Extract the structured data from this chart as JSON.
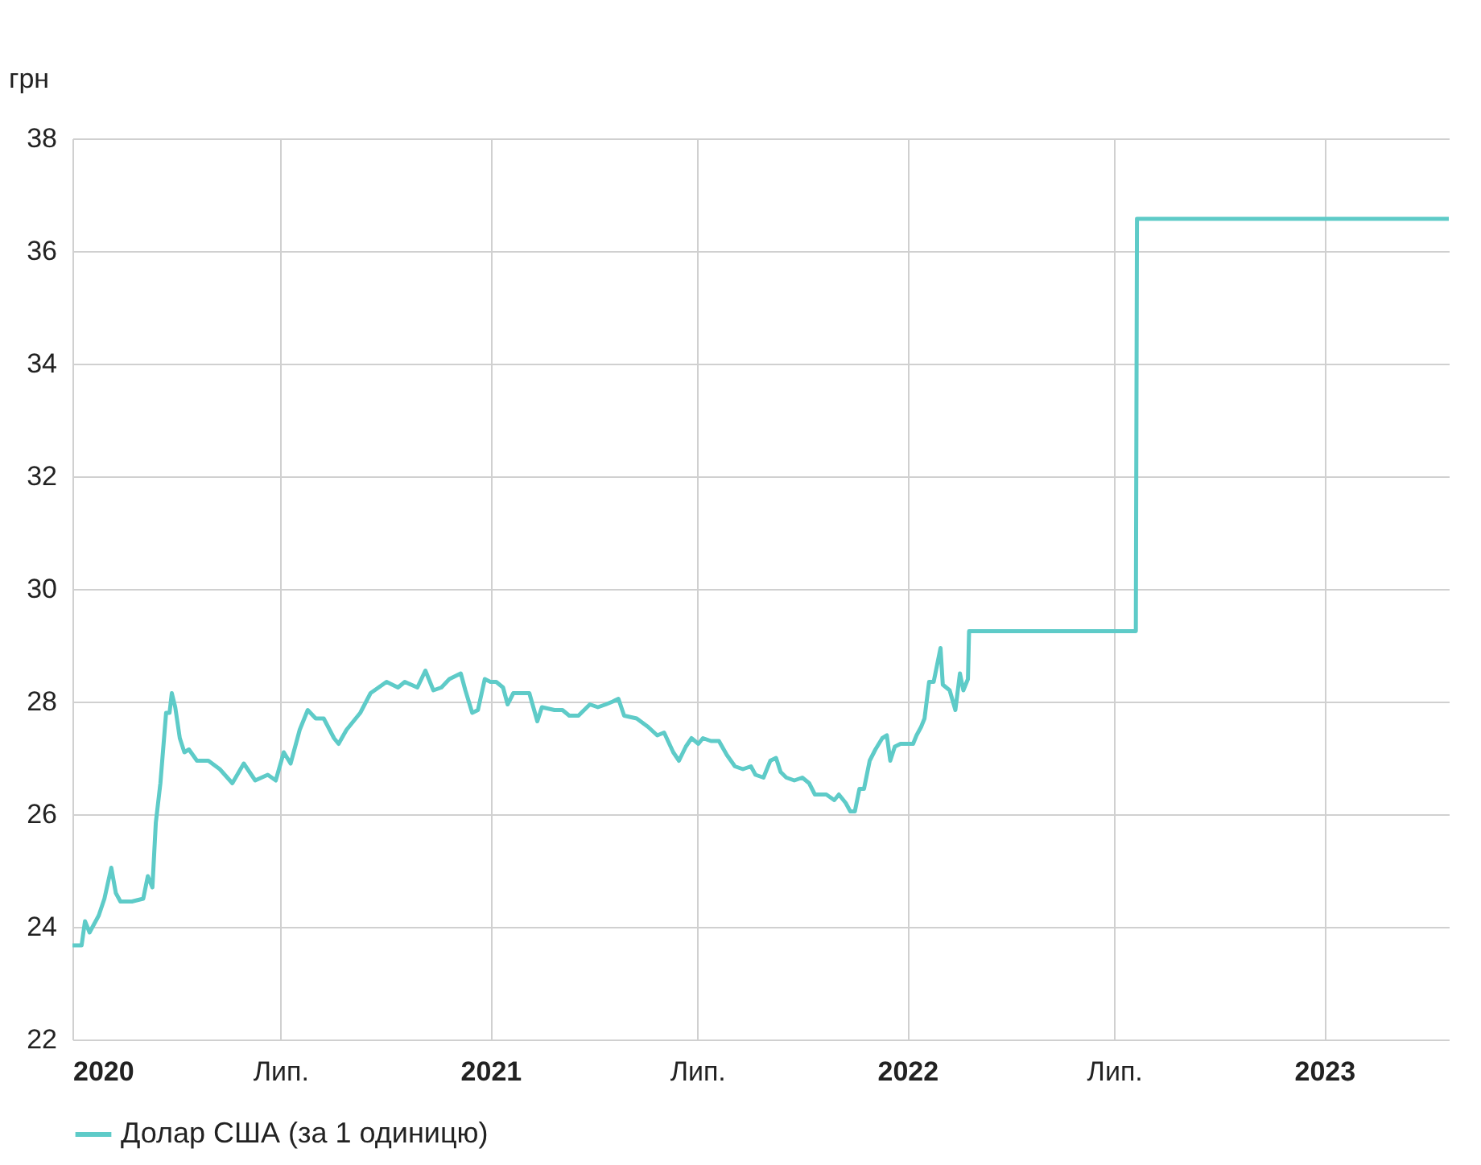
{
  "chart_data": {
    "type": "line",
    "ylabel": "грн",
    "xlim": [
      "2020-01-01",
      "2023-04-20"
    ],
    "xticks": [
      {
        "value": "2020-01-01",
        "label": "2020"
      },
      {
        "value": "2020-07-01",
        "label": "Лип."
      },
      {
        "value": "2021-01-01",
        "label": "2021"
      },
      {
        "value": "2021-07-01",
        "label": "Лип."
      },
      {
        "value": "2022-01-01",
        "label": "2022"
      },
      {
        "value": "2022-07-01",
        "label": "Лип."
      },
      {
        "value": "2023-01-01",
        "label": "2023"
      }
    ],
    "ylim": [
      22,
      38
    ],
    "yticks": [
      22,
      24,
      26,
      28,
      30,
      32,
      34,
      36,
      38
    ],
    "grid": true,
    "legend": "bottom",
    "marker": "none",
    "line_style": "solid",
    "series": [
      {
        "name": "Долар США (за 1 одиницю)",
        "color": "#5ecbc8",
        "x": [
          "2020-01-01",
          "2020-01-09",
          "2020-01-12",
          "2020-01-16",
          "2020-01-24",
          "2020-01-29",
          "2020-02-04",
          "2020-02-08",
          "2020-02-12",
          "2020-02-22",
          "2020-03-03",
          "2020-03-07",
          "2020-03-11",
          "2020-03-14",
          "2020-03-18",
          "2020-03-23",
          "2020-03-26",
          "2020-03-28",
          "2020-03-31",
          "2020-04-04",
          "2020-04-08",
          "2020-04-12",
          "2020-04-19",
          "2020-04-29",
          "2020-05-09",
          "2020-05-20",
          "2020-05-30",
          "2020-06-09",
          "2020-06-20",
          "2020-06-27",
          "2020-07-04",
          "2020-07-10",
          "2020-07-18",
          "2020-07-25",
          "2020-08-01",
          "2020-08-08",
          "2020-08-17",
          "2020-08-21",
          "2020-08-28",
          "2020-09-09",
          "2020-09-18",
          "2020-10-02",
          "2020-10-12",
          "2020-10-18",
          "2020-10-29",
          "2020-11-05",
          "2020-11-12",
          "2020-11-19",
          "2020-11-26",
          "2020-12-06",
          "2020-12-10",
          "2020-12-16",
          "2020-12-21",
          "2020-12-27",
          "2021-01-01",
          "2021-01-06",
          "2021-01-12",
          "2021-01-16",
          "2021-01-21",
          "2021-01-30",
          "2021-02-04",
          "2021-02-11",
          "2021-02-15",
          "2021-02-26",
          "2021-03-05",
          "2021-03-11",
          "2021-03-19",
          "2021-03-29",
          "2021-04-05",
          "2021-04-12",
          "2021-04-18",
          "2021-04-23",
          "2021-04-28",
          "2021-05-09",
          "2021-05-19",
          "2021-05-27",
          "2021-06-02",
          "2021-06-10",
          "2021-06-15",
          "2021-06-21",
          "2021-06-26",
          "2021-07-02",
          "2021-07-06",
          "2021-07-13",
          "2021-07-20",
          "2021-07-27",
          "2021-08-03",
          "2021-08-10",
          "2021-08-17",
          "2021-08-21",
          "2021-08-28",
          "2021-09-03",
          "2021-09-08",
          "2021-09-12",
          "2021-09-17",
          "2021-09-24",
          "2021-10-01",
          "2021-10-07",
          "2021-10-12",
          "2021-10-22",
          "2021-10-29",
          "2021-11-02",
          "2021-11-08",
          "2021-11-12",
          "2021-11-16",
          "2021-11-20",
          "2021-11-24",
          "2021-11-29",
          "2021-12-04",
          "2021-12-10",
          "2021-12-14",
          "2021-12-17",
          "2021-12-21",
          "2021-12-26",
          "2022-01-01",
          "2022-01-06",
          "2022-01-09",
          "2022-01-13",
          "2022-01-16",
          "2022-01-20",
          "2022-01-24",
          "2022-01-30",
          "2022-02-01",
          "2022-02-07",
          "2022-02-12",
          "2022-02-16",
          "2022-02-19",
          "2022-02-23",
          "2022-02-24",
          "2022-07-20",
          "2022-07-21",
          "2023-04-20"
        ],
        "values": [
          23.67,
          23.67,
          24.1,
          23.9,
          24.2,
          24.5,
          25.05,
          24.6,
          24.45,
          24.45,
          24.5,
          24.9,
          24.7,
          25.85,
          26.55,
          27.8,
          27.8,
          28.15,
          27.9,
          27.35,
          27.1,
          27.15,
          26.95,
          26.95,
          26.8,
          26.55,
          26.9,
          26.6,
          26.7,
          26.6,
          27.1,
          26.9,
          27.5,
          27.85,
          27.7,
          27.7,
          27.35,
          27.25,
          27.5,
          27.8,
          28.15,
          28.35,
          28.25,
          28.35,
          28.25,
          28.55,
          28.2,
          28.25,
          28.4,
          28.5,
          28.2,
          27.8,
          27.85,
          28.4,
          28.35,
          28.35,
          28.25,
          27.95,
          28.15,
          28.15,
          28.15,
          27.65,
          27.9,
          27.85,
          27.85,
          27.75,
          27.75,
          27.95,
          27.9,
          27.95,
          28.0,
          28.05,
          27.75,
          27.7,
          27.55,
          27.4,
          27.45,
          27.1,
          26.95,
          27.2,
          27.35,
          27.25,
          27.35,
          27.3,
          27.3,
          27.05,
          26.85,
          26.8,
          26.85,
          26.7,
          26.65,
          26.95,
          27.0,
          26.75,
          26.65,
          26.6,
          26.65,
          26.55,
          26.35,
          26.35,
          26.25,
          26.35,
          26.2,
          26.05,
          26.05,
          26.45,
          26.45,
          26.95,
          27.15,
          27.35,
          27.4,
          26.95,
          27.2,
          27.25,
          27.25,
          27.25,
          27.4,
          27.55,
          27.7,
          28.35,
          28.35,
          28.95,
          28.3,
          28.2,
          27.85,
          28.5,
          28.2,
          28.4,
          29.25,
          29.25,
          36.57,
          36.57
        ]
      }
    ]
  }
}
